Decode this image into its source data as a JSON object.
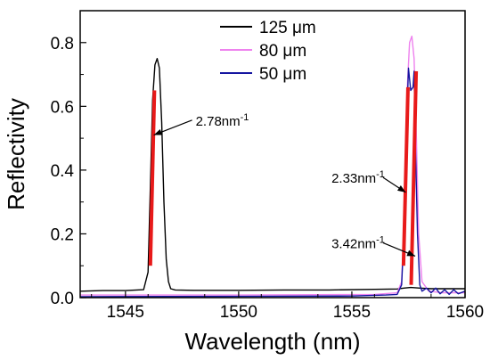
{
  "chart_data": {
    "type": "line",
    "xlabel": "Wavelength (nm)",
    "ylabel": "Reflectivity",
    "xlim": [
      1543,
      1560
    ],
    "ylim": [
      0.0,
      0.9
    ],
    "xticks": [
      1545,
      1550,
      1555,
      1560
    ],
    "yticks": [
      0.0,
      0.2,
      0.4,
      0.6,
      0.8
    ],
    "xtick_labels": [
      "1545",
      "1550",
      "1555",
      "1560"
    ],
    "ytick_labels": [
      "0.0",
      "0.2",
      "0.4",
      "0.6",
      "0.8"
    ],
    "legend": {
      "placement": "top-center"
    },
    "series": [
      {
        "name": "125 μm",
        "color": "#000000",
        "x": [
          1543,
          1544,
          1545,
          1545.8,
          1546.0,
          1546.1,
          1546.2,
          1546.3,
          1546.4,
          1546.5,
          1546.6,
          1546.7,
          1546.8,
          1546.9,
          1547.0,
          1547.2,
          1548,
          1550,
          1552,
          1554,
          1556,
          1557.0,
          1557.3,
          1557.6,
          1558.0,
          1558.5,
          1559,
          1560
        ],
        "y": [
          0.02,
          0.022,
          0.022,
          0.025,
          0.08,
          0.35,
          0.62,
          0.73,
          0.75,
          0.72,
          0.55,
          0.3,
          0.12,
          0.05,
          0.028,
          0.024,
          0.023,
          0.023,
          0.024,
          0.024,
          0.026,
          0.027,
          0.03,
          0.032,
          0.03,
          0.028,
          0.028,
          0.028
        ]
      },
      {
        "name": "80 μm",
        "color": "#ee82ee",
        "x": [
          1543,
          1550,
          1556,
          1557.0,
          1557.2,
          1557.35,
          1557.45,
          1557.55,
          1557.65,
          1557.75,
          1557.85,
          1557.95,
          1558.1,
          1558.4,
          1559,
          1560
        ],
        "y": [
          0.008,
          0.008,
          0.01,
          0.015,
          0.05,
          0.3,
          0.66,
          0.8,
          0.82,
          0.75,
          0.5,
          0.2,
          0.05,
          0.02,
          0.015,
          0.015
        ]
      },
      {
        "name": "50 μm",
        "color": "#1515a0",
        "x": [
          1543,
          1550,
          1555,
          1556.5,
          1557.0,
          1557.2,
          1557.3,
          1557.4,
          1557.5,
          1557.6,
          1557.7,
          1557.75,
          1557.8,
          1557.9,
          1558.0,
          1558.1,
          1558.3,
          1558.5,
          1558.7,
          1558.9,
          1559.1,
          1559.3,
          1559.5,
          1559.7,
          1560
        ],
        "y": [
          0.003,
          0.004,
          0.005,
          0.008,
          0.01,
          0.04,
          0.2,
          0.5,
          0.72,
          0.65,
          0.66,
          0.71,
          0.5,
          0.2,
          0.04,
          0.02,
          0.03,
          0.015,
          0.03,
          0.012,
          0.025,
          0.01,
          0.025,
          0.012,
          0.02
        ]
      }
    ],
    "highlights": [
      {
        "color": "#e81a1a",
        "x": [
          1546.1,
          1546.28
        ],
        "y": [
          0.1,
          0.65
        ]
      },
      {
        "color": "#e81a1a",
        "x": [
          1557.28,
          1557.48
        ],
        "y": [
          0.1,
          0.66
        ]
      },
      {
        "color": "#e81a1a",
        "x": [
          1557.62,
          1557.84
        ],
        "y": [
          0.04,
          0.71
        ]
      }
    ],
    "annotations": [
      {
        "label": "2.78nm",
        "sup": "-1",
        "text_x": 1548.1,
        "text_y": 0.54,
        "arrow_to": [
          1546.25,
          0.51
        ]
      },
      {
        "label": "2.33nm",
        "sup": "-1",
        "text_x": 1554.1,
        "text_y": 0.36,
        "arrow_to": [
          1557.38,
          0.33
        ]
      },
      {
        "label": "3.42nm",
        "sup": "-1",
        "text_x": 1554.1,
        "text_y": 0.155,
        "arrow_to": [
          1557.8,
          0.13
        ]
      }
    ]
  }
}
